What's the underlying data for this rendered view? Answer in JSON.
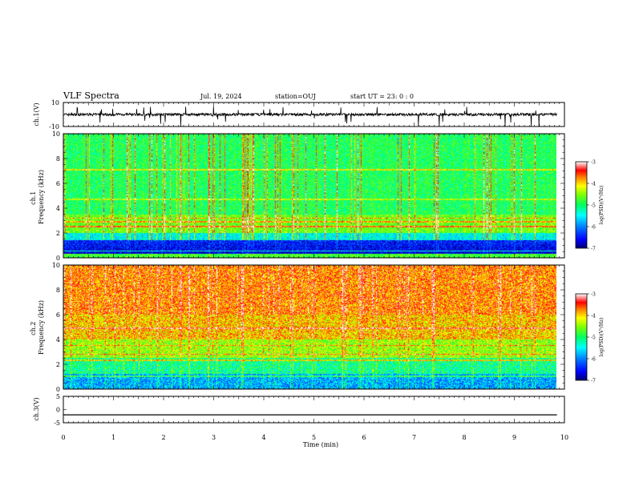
{
  "header": {
    "title": "VLF Spectra",
    "date": "Jul. 19, 2024",
    "station": "station=OUJ",
    "start_ut": "start UT =  23: 0  : 0"
  },
  "chart_data": [
    {
      "type": "line",
      "panel": "waveform-ch1",
      "ylabel": "ch.1(V)",
      "ylim": [
        -10,
        10
      ],
      "yticks": [
        "10",
        "-10"
      ],
      "xlim": [
        0,
        10
      ],
      "series": [
        {
          "values_note": "noise around 0 V with spikes",
          "baseline": 0.0
        }
      ]
    },
    {
      "type": "heatmap",
      "panel": "spectrogram-ch1",
      "ylabel": "ch.1\nFrequency (kHz)",
      "ylim": [
        0,
        10
      ],
      "yticks": [
        "0",
        "2",
        "4",
        "6",
        "8",
        "10"
      ],
      "xlim": [
        0,
        10
      ],
      "colorbar": {
        "label": "log(PSD)(V²/Hz)",
        "range": [
          -7,
          -3
        ],
        "ticks": [
          "-3",
          "-4",
          "-5",
          "-6",
          "-7"
        ]
      },
      "data_end_min": 9.85
    },
    {
      "type": "heatmap",
      "panel": "spectrogram-ch2",
      "ylabel": "ch.2\nFrequency (kHz)",
      "ylim": [
        0,
        10
      ],
      "yticks": [
        "0",
        "2",
        "4",
        "6",
        "8",
        "10"
      ],
      "xlim": [
        0,
        10
      ],
      "colorbar": {
        "label": "log(PSD)(V²/Hz)",
        "range": [
          -7,
          -3
        ],
        "ticks": [
          "-3",
          "-4",
          "-5",
          "-6",
          "-7"
        ]
      },
      "data_end_min": 9.85
    },
    {
      "type": "line",
      "panel": "waveform-ch3",
      "ylabel": "ch.3(V)",
      "ylim": [
        -5,
        5
      ],
      "yticks": [
        "5",
        "0",
        "-5"
      ],
      "xlim": [
        0,
        10
      ],
      "series": [
        {
          "baseline": -2.0
        }
      ]
    }
  ],
  "xaxis": {
    "label": "Time (min)",
    "ticks": [
      "0",
      "1",
      "2",
      "3",
      "4",
      "5",
      "6",
      "7",
      "8",
      "9",
      "10"
    ]
  },
  "colors": {
    "colormap": [
      "#000080",
      "#0000ff",
      "#0080ff",
      "#00ffff",
      "#00ff80",
      "#00ff00",
      "#80ff00",
      "#ffff00",
      "#ff8000",
      "#ff0000",
      "#ffffff"
    ]
  }
}
